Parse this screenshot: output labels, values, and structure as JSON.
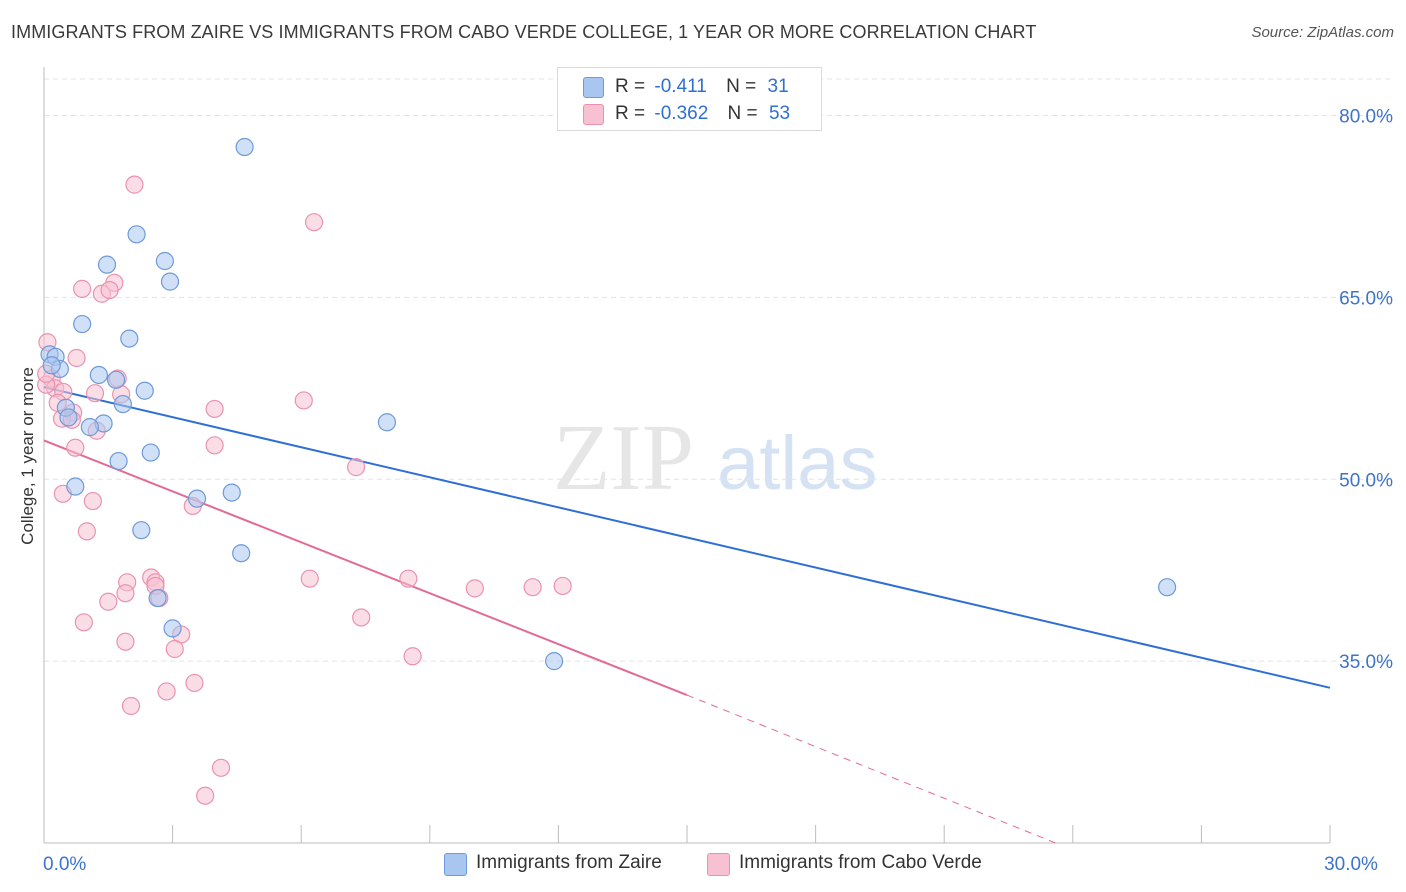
{
  "title": "IMMIGRANTS FROM ZAIRE VS IMMIGRANTS FROM CABO VERDE COLLEGE, 1 YEAR OR MORE CORRELATION CHART",
  "source": "Source: ZipAtlas.com",
  "watermark": {
    "zip": "ZIP",
    "atlas": "atlas"
  },
  "legend": {
    "zaire": {
      "r_label": "R =",
      "r_value": "-0.411",
      "n_label": "N =",
      "n_value": "31"
    },
    "cabo": {
      "r_label": "R =",
      "r_value": "-0.362",
      "n_label": "N =",
      "n_value": "53"
    }
  },
  "bottom_legend": {
    "zaire": "Immigrants from Zaire",
    "cabo": "Immigrants from Cabo Verde"
  },
  "colors": {
    "zaire_fill": "#a9c6f0",
    "zaire_stroke": "#6f9ad8",
    "zaire_line": "#2f6fd4",
    "cabo_fill": "#f7c1d1",
    "cabo_stroke": "#e993b0",
    "cabo_line": "#e36a96",
    "grid": "#e3e3e3",
    "tick_label": "#3d73c9"
  },
  "chart_data": {
    "type": "scatter",
    "title": "IMMIGRANTS FROM ZAIRE VS IMMIGRANTS FROM CABO VERDE COLLEGE, 1 YEAR OR MORE CORRELATION CHART",
    "xlabel": "",
    "ylabel": "College, 1 year or more",
    "xlim": [
      0,
      30
    ],
    "ylim": [
      20,
      84
    ],
    "x_tick_labels": [
      {
        "value": 0,
        "label": "0.0%"
      },
      {
        "value": 30,
        "label": "30.0%"
      }
    ],
    "x_minor_ticks": [
      0,
      3,
      6,
      9,
      12,
      15,
      18,
      21,
      24,
      27,
      30
    ],
    "y_ticks": [
      {
        "value": 80,
        "label": "80.0%"
      },
      {
        "value": 65,
        "label": "65.0%"
      },
      {
        "value": 50,
        "label": "50.0%"
      },
      {
        "value": 35,
        "label": "35.0%"
      }
    ],
    "series": [
      {
        "name": "Immigrants from Zaire",
        "points": [
          [
            4.68,
            77.4
          ],
          [
            2.16,
            70.2
          ],
          [
            2.82,
            68.0
          ],
          [
            1.47,
            67.7
          ],
          [
            2.94,
            66.3
          ],
          [
            0.89,
            62.8
          ],
          [
            1.99,
            61.6
          ],
          [
            0.13,
            60.3
          ],
          [
            0.27,
            60.1
          ],
          [
            0.37,
            59.1
          ],
          [
            1.28,
            58.6
          ],
          [
            1.68,
            58.2
          ],
          [
            2.35,
            57.3
          ],
          [
            1.84,
            56.2
          ],
          [
            0.51,
            55.9
          ],
          [
            0.57,
            55.1
          ],
          [
            8.0,
            54.7
          ],
          [
            1.39,
            54.6
          ],
          [
            1.07,
            54.3
          ],
          [
            2.49,
            52.2
          ],
          [
            1.74,
            51.5
          ],
          [
            0.73,
            49.4
          ],
          [
            4.38,
            48.9
          ],
          [
            3.57,
            48.4
          ],
          [
            2.27,
            45.8
          ],
          [
            4.6,
            43.9
          ],
          [
            26.2,
            41.1
          ],
          [
            2.65,
            40.2
          ],
          [
            3.0,
            37.7
          ],
          [
            11.9,
            35.0
          ],
          [
            0.18,
            59.4
          ]
        ]
      },
      {
        "name": "Immigrants from Cabo Verde",
        "points": [
          [
            2.11,
            74.3
          ],
          [
            6.3,
            71.2
          ],
          [
            0.89,
            65.7
          ],
          [
            1.64,
            66.2
          ],
          [
            1.35,
            65.3
          ],
          [
            1.53,
            65.6
          ],
          [
            0.08,
            61.3
          ],
          [
            0.76,
            60.0
          ],
          [
            0.18,
            58.3
          ],
          [
            0.26,
            57.5
          ],
          [
            0.45,
            57.2
          ],
          [
            1.19,
            57.1
          ],
          [
            1.72,
            58.3
          ],
          [
            1.8,
            57.0
          ],
          [
            0.32,
            56.3
          ],
          [
            3.98,
            55.8
          ],
          [
            6.06,
            56.5
          ],
          [
            0.68,
            55.5
          ],
          [
            0.42,
            55.0
          ],
          [
            0.65,
            54.9
          ],
          [
            1.23,
            54.0
          ],
          [
            0.73,
            52.6
          ],
          [
            3.98,
            52.8
          ],
          [
            7.28,
            51.0
          ],
          [
            0.44,
            48.8
          ],
          [
            1.14,
            48.2
          ],
          [
            3.47,
            47.8
          ],
          [
            1.0,
            45.7
          ],
          [
            2.5,
            41.9
          ],
          [
            2.6,
            41.5
          ],
          [
            2.6,
            41.2
          ],
          [
            1.94,
            41.5
          ],
          [
            6.2,
            41.8
          ],
          [
            8.5,
            41.8
          ],
          [
            10.05,
            41.0
          ],
          [
            11.4,
            41.1
          ],
          [
            12.1,
            41.2
          ],
          [
            1.9,
            40.6
          ],
          [
            2.69,
            40.2
          ],
          [
            1.5,
            39.9
          ],
          [
            7.4,
            38.6
          ],
          [
            0.93,
            38.2
          ],
          [
            3.2,
            37.2
          ],
          [
            1.9,
            36.6
          ],
          [
            3.05,
            36.0
          ],
          [
            8.6,
            35.4
          ],
          [
            3.51,
            33.2
          ],
          [
            2.86,
            32.5
          ],
          [
            2.03,
            31.3
          ],
          [
            4.13,
            26.2
          ],
          [
            3.76,
            23.9
          ],
          [
            0.05,
            57.8
          ],
          [
            0.05,
            58.7
          ]
        ]
      }
    ],
    "trend_lines": [
      {
        "name": "Immigrants from Zaire",
        "x": [
          0,
          30
        ],
        "y": [
          57.6,
          32.8
        ],
        "style": "solid"
      },
      {
        "name": "Immigrants from Cabo Verde",
        "x": [
          0,
          15
        ],
        "y": [
          53.2,
          32.2
        ],
        "style": "solid"
      },
      {
        "name": "Immigrants from Cabo Verde (extrapolated)",
        "x": [
          15,
          23.6
        ],
        "y": [
          32.2,
          20.0
        ],
        "style": "dashed"
      }
    ]
  }
}
